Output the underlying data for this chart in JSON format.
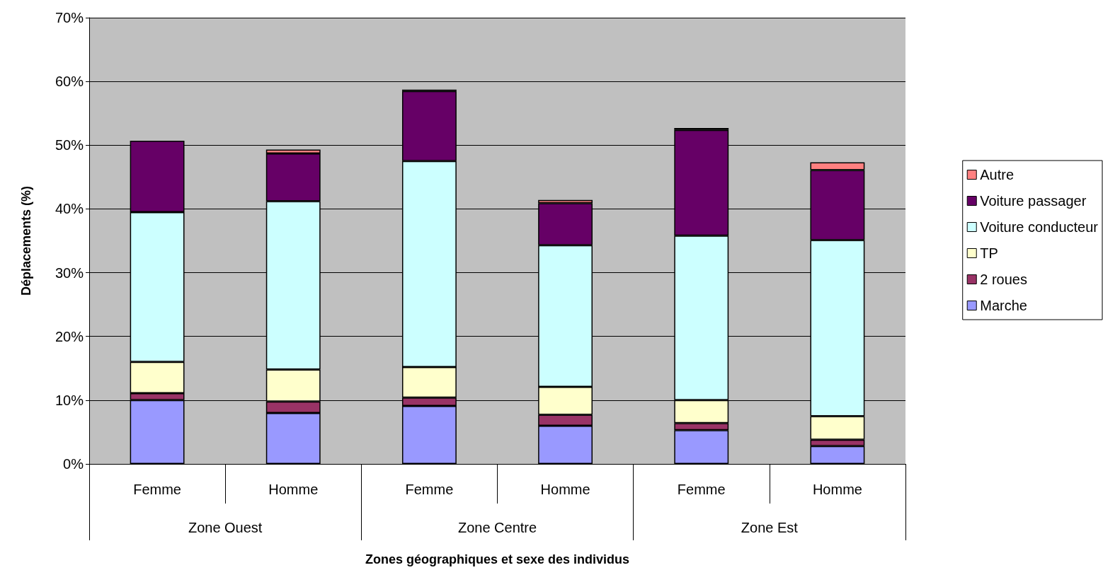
{
  "chart_data": {
    "type": "bar",
    "stacked": true,
    "xlabel": "Zones géographiques et sexe des individus",
    "ylabel": "Déplacements (%)",
    "categories": [
      "Femme",
      "Homme",
      "Femme",
      "Homme",
      "Femme",
      "Homme"
    ],
    "annotations": [
      "Zone Ouest",
      "Zone Centre",
      "Zone Est"
    ],
    "series": [
      {
        "name": "Marche",
        "color": "#9999ff",
        "values": [
          10.0,
          8.0,
          9.1,
          6.0,
          5.3,
          2.8
        ]
      },
      {
        "name": "2 roues",
        "color": "#993366",
        "values": [
          1.1,
          1.8,
          1.3,
          1.7,
          1.1,
          1.0
        ]
      },
      {
        "name": "TP",
        "color": "#ffffcc",
        "values": [
          4.9,
          5.0,
          4.8,
          4.4,
          3.6,
          3.7
        ]
      },
      {
        "name": "Voiture conducteur",
        "color": "#ccffff",
        "values": [
          23.5,
          26.4,
          32.3,
          22.2,
          25.8,
          27.6
        ]
      },
      {
        "name": "Voiture passager",
        "color": "#660066",
        "values": [
          11.2,
          7.5,
          11.0,
          6.6,
          16.6,
          11.0
        ]
      },
      {
        "name": "Autre",
        "color": "#ff8080",
        "values": [
          null,
          0.6,
          0.2,
          0.5,
          0.3,
          1.2
        ]
      }
    ],
    "ylim": [
      0,
      70
    ],
    "yticks": [
      {
        "value": 0,
        "label": "0%"
      },
      {
        "value": 10,
        "label": "10%"
      },
      {
        "value": 20,
        "label": "20%"
      },
      {
        "value": 30,
        "label": "30%"
      },
      {
        "value": 40,
        "label": "40%"
      },
      {
        "value": 50,
        "label": "50%"
      },
      {
        "value": 60,
        "label": "60%"
      },
      {
        "value": 70,
        "label": "70%"
      }
    ],
    "grid": "y",
    "legend": "right"
  }
}
